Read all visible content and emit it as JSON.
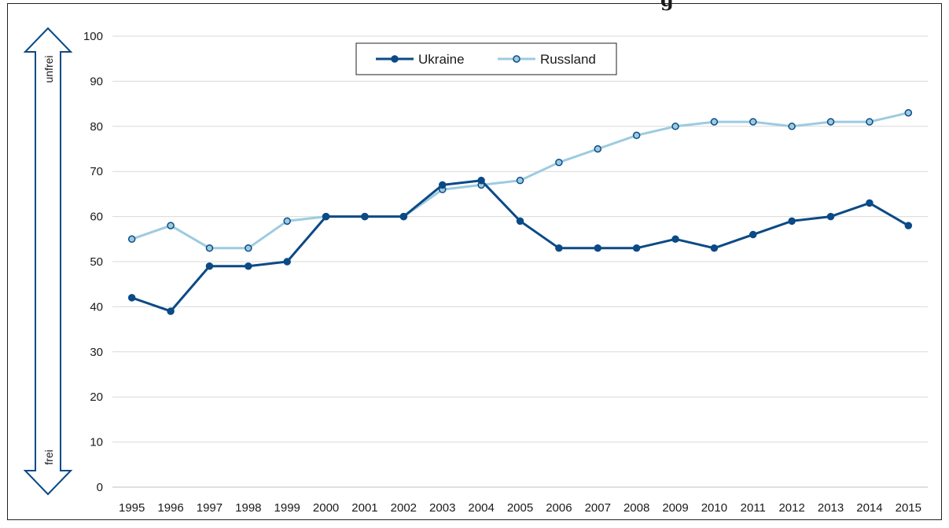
{
  "header": {
    "title_fragment": "g"
  },
  "scale_arrow": {
    "top_label": "unfrei",
    "bottom_label": "frei"
  },
  "chart_data": {
    "type": "line",
    "x": [
      "1995",
      "1996",
      "1997",
      "1998",
      "1999",
      "2000",
      "2001",
      "2002",
      "2003",
      "2004",
      "2005",
      "2006",
      "2007",
      "2008",
      "2009",
      "2010",
      "2011",
      "2012",
      "2013",
      "2014",
      "2015"
    ],
    "series": [
      {
        "name": "Ukraine",
        "color": "#0b4a86",
        "values": [
          42,
          39,
          49,
          49,
          50,
          60,
          60,
          60,
          67,
          68,
          59,
          53,
          53,
          53,
          55,
          53,
          56,
          59,
          60,
          63,
          58
        ]
      },
      {
        "name": "Russland",
        "color": "#9ccbe0",
        "values": [
          55,
          58,
          53,
          53,
          59,
          60,
          60,
          60,
          66,
          67,
          68,
          72,
          75,
          78,
          80,
          81,
          81,
          80,
          81,
          81,
          83
        ]
      }
    ],
    "ylim": [
      0,
      100
    ],
    "yticks": [
      0,
      10,
      20,
      30,
      40,
      50,
      60,
      70,
      80,
      90,
      100
    ],
    "grid": true,
    "legend_position": "top-center",
    "xlabel": "",
    "ylabel": ""
  }
}
